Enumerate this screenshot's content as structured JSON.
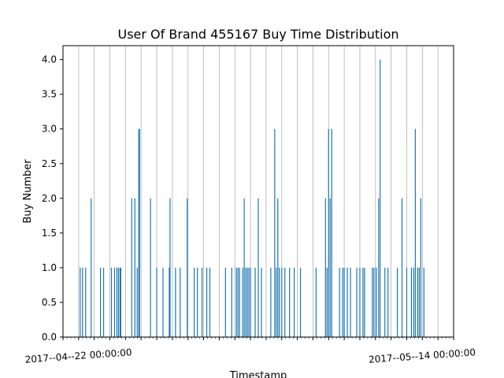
{
  "chart_data": {
    "type": "bar",
    "title": "User Of Brand 455167 Buy Time Distribution",
    "xlabel": "Timestamp",
    "ylabel": "Buy Number",
    "x_range_days": [
      -1.0,
      24.0
    ],
    "ylim": [
      0,
      4.2
    ],
    "yticks": [
      {
        "value": 0.0,
        "label": "0.0"
      },
      {
        "value": 0.5,
        "label": "0.5"
      },
      {
        "value": 1.0,
        "label": "1.0"
      },
      {
        "value": 1.5,
        "label": "1.5"
      },
      {
        "value": 2.0,
        "label": "2.0"
      },
      {
        "value": 2.5,
        "label": "2.5"
      },
      {
        "value": 3.0,
        "label": "3.0"
      },
      {
        "value": 3.5,
        "label": "3.5"
      },
      {
        "value": 4.0,
        "label": "4.0"
      }
    ],
    "xtick_labels": [
      {
        "day": 0,
        "label": "2017--04--22 00:00:00"
      },
      {
        "day": 22,
        "label": "2017--05--14 00:00:00"
      }
    ],
    "grid": "vertical",
    "bar_color": "#1f77b4",
    "bars": [
      {
        "t": 0.1,
        "v": 1
      },
      {
        "t": 0.25,
        "v": 1
      },
      {
        "t": 0.45,
        "v": 1
      },
      {
        "t": 0.8,
        "v": 2
      },
      {
        "t": 1.4,
        "v": 1
      },
      {
        "t": 1.6,
        "v": 1
      },
      {
        "t": 2.1,
        "v": 1
      },
      {
        "t": 2.3,
        "v": 1
      },
      {
        "t": 2.45,
        "v": 1
      },
      {
        "t": 2.55,
        "v": 1
      },
      {
        "t": 2.65,
        "v": 1
      },
      {
        "t": 2.7,
        "v": 1
      },
      {
        "t": 3.4,
        "v": 2
      },
      {
        "t": 3.6,
        "v": 2
      },
      {
        "t": 3.75,
        "v": 1
      },
      {
        "t": 3.85,
        "v": 3
      },
      {
        "t": 3.9,
        "v": 3
      },
      {
        "t": 4.6,
        "v": 2
      },
      {
        "t": 5.0,
        "v": 1
      },
      {
        "t": 5.4,
        "v": 1
      },
      {
        "t": 5.8,
        "v": 1
      },
      {
        "t": 5.85,
        "v": 2
      },
      {
        "t": 6.2,
        "v": 1
      },
      {
        "t": 6.5,
        "v": 1
      },
      {
        "t": 6.95,
        "v": 2
      },
      {
        "t": 7.4,
        "v": 1
      },
      {
        "t": 7.6,
        "v": 1
      },
      {
        "t": 7.9,
        "v": 1
      },
      {
        "t": 8.2,
        "v": 1
      },
      {
        "t": 8.4,
        "v": 1
      },
      {
        "t": 9.4,
        "v": 1
      },
      {
        "t": 9.8,
        "v": 1
      },
      {
        "t": 10.1,
        "v": 1
      },
      {
        "t": 10.2,
        "v": 1
      },
      {
        "t": 10.3,
        "v": 1
      },
      {
        "t": 10.5,
        "v": 1
      },
      {
        "t": 10.6,
        "v": 2
      },
      {
        "t": 10.7,
        "v": 1
      },
      {
        "t": 10.8,
        "v": 1
      },
      {
        "t": 10.9,
        "v": 1
      },
      {
        "t": 11.0,
        "v": 1
      },
      {
        "t": 11.3,
        "v": 1
      },
      {
        "t": 11.5,
        "v": 2
      },
      {
        "t": 11.7,
        "v": 1
      },
      {
        "t": 12.3,
        "v": 1
      },
      {
        "t": 12.55,
        "v": 3
      },
      {
        "t": 12.65,
        "v": 1
      },
      {
        "t": 12.75,
        "v": 2
      },
      {
        "t": 12.85,
        "v": 1
      },
      {
        "t": 13.0,
        "v": 1
      },
      {
        "t": 13.2,
        "v": 1
      },
      {
        "t": 13.5,
        "v": 1
      },
      {
        "t": 13.8,
        "v": 1
      },
      {
        "t": 14.2,
        "v": 1
      },
      {
        "t": 15.2,
        "v": 1
      },
      {
        "t": 15.8,
        "v": 2
      },
      {
        "t": 15.9,
        "v": 1
      },
      {
        "t": 16.0,
        "v": 3
      },
      {
        "t": 16.1,
        "v": 2
      },
      {
        "t": 16.2,
        "v": 3
      },
      {
        "t": 16.7,
        "v": 1
      },
      {
        "t": 16.9,
        "v": 1
      },
      {
        "t": 17.0,
        "v": 1
      },
      {
        "t": 17.2,
        "v": 1
      },
      {
        "t": 17.4,
        "v": 1
      },
      {
        "t": 17.8,
        "v": 1
      },
      {
        "t": 18.0,
        "v": 1
      },
      {
        "t": 18.2,
        "v": 1
      },
      {
        "t": 18.3,
        "v": 1
      },
      {
        "t": 18.8,
        "v": 1
      },
      {
        "t": 18.9,
        "v": 1
      },
      {
        "t": 19.05,
        "v": 1
      },
      {
        "t": 19.2,
        "v": 2
      },
      {
        "t": 19.3,
        "v": 4
      },
      {
        "t": 19.6,
        "v": 1
      },
      {
        "t": 19.8,
        "v": 1
      },
      {
        "t": 20.4,
        "v": 1
      },
      {
        "t": 20.7,
        "v": 2
      },
      {
        "t": 21.0,
        "v": 1
      },
      {
        "t": 21.3,
        "v": 1
      },
      {
        "t": 21.45,
        "v": 1
      },
      {
        "t": 21.55,
        "v": 3
      },
      {
        "t": 21.7,
        "v": 1
      },
      {
        "t": 21.8,
        "v": 1
      },
      {
        "t": 21.9,
        "v": 2
      },
      {
        "t": 22.1,
        "v": 1
      }
    ]
  }
}
